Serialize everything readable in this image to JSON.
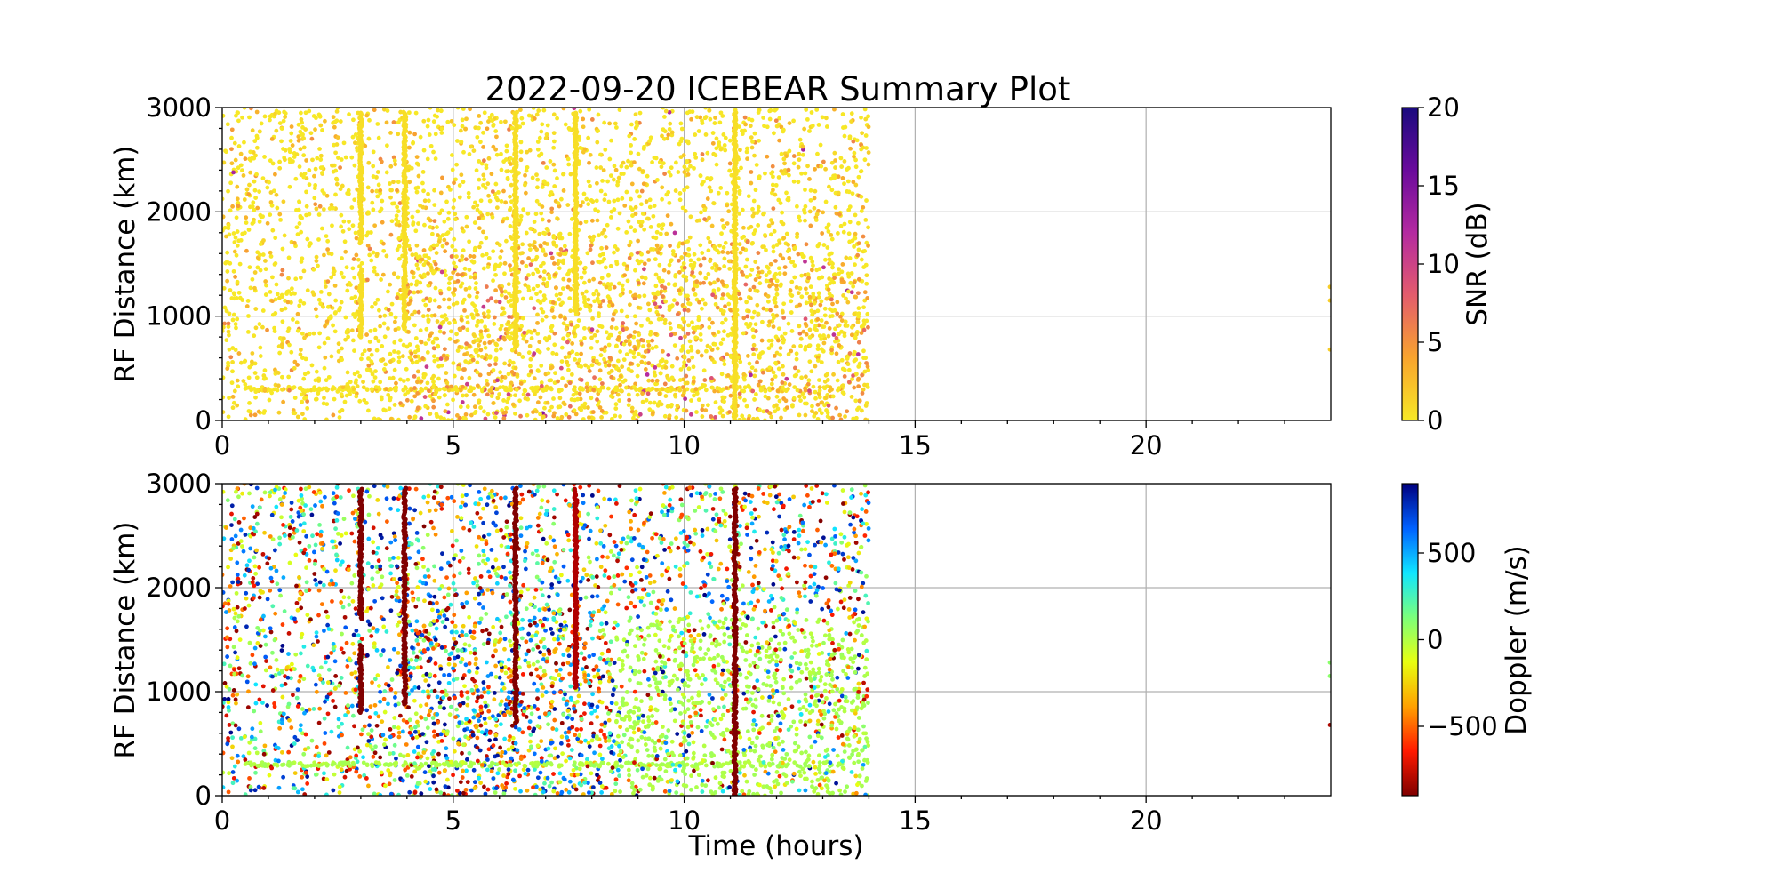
{
  "chart_data": [
    {
      "type": "scatter",
      "title": "2022-09-20 ICEBEAR Summary Plot",
      "xlabel": "",
      "ylabel": "RF Distance (km)",
      "xlim": [
        0,
        24
      ],
      "ylim": [
        0,
        3000
      ],
      "xticks": [
        "0",
        "5",
        "10",
        "15",
        "20"
      ],
      "yticks": [
        "0",
        "1000",
        "2000",
        "3000"
      ],
      "grid": true,
      "colorbar": {
        "label": "SNR (dB)",
        "range": [
          0,
          20
        ],
        "ticks": [
          "0",
          "5",
          "10",
          "15",
          "20"
        ],
        "colormap": [
          "#f7e826",
          "#f8a42e",
          "#e45c6c",
          "#b42aa0",
          "#6a0a9c",
          "#1a0a7e"
        ]
      },
      "scatter_extent": {
        "time_range_hours": [
          0,
          14
        ],
        "distance_range_km": [
          0,
          3000
        ],
        "vertical_streaks_hours": [
          3.0,
          3.95,
          6.35,
          7.65,
          11.1
        ],
        "late_points": [
          {
            "time": 24.0,
            "distance": 1280
          },
          {
            "time": 24.0,
            "distance": 1150
          },
          {
            "time": 24.0,
            "distance": 680
          }
        ]
      }
    },
    {
      "type": "scatter",
      "title": "",
      "xlabel": "Time (hours)",
      "ylabel": "RF Distance (km)",
      "xlim": [
        0,
        24
      ],
      "ylim": [
        0,
        3000
      ],
      "xticks": [
        "0",
        "5",
        "10",
        "15",
        "20"
      ],
      "yticks": [
        "0",
        "1000",
        "2000",
        "3000"
      ],
      "grid": true,
      "colorbar": {
        "label": "Doppler (m/s)",
        "range": [
          -900,
          900
        ],
        "ticks": [
          "−500",
          "0",
          "500"
        ],
        "tick_values": [
          -500,
          0,
          500
        ],
        "colormap": [
          "#7f0000",
          "#ff1a00",
          "#ffa100",
          "#e8ff10",
          "#7bff7b",
          "#10e6ff",
          "#0061ff",
          "#00007f"
        ]
      },
      "scatter_extent": {
        "time_range_hours": [
          0,
          14
        ],
        "distance_range_km": [
          0,
          3000
        ],
        "vertical_streaks_hours": [
          3.0,
          3.95,
          6.35,
          7.65,
          11.1
        ],
        "late_points": [
          {
            "time": 24.0,
            "distance": 1280
          },
          {
            "time": 24.0,
            "distance": 1150
          },
          {
            "time": 24.0,
            "distance": 680
          }
        ]
      }
    }
  ]
}
